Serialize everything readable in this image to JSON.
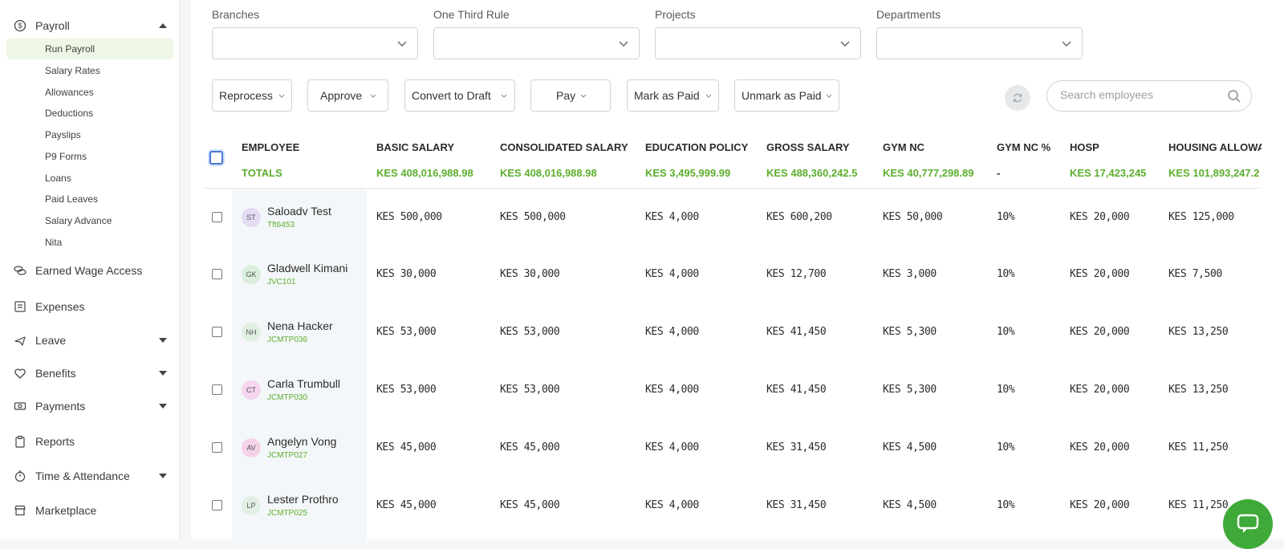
{
  "sidebar": {
    "payroll": {
      "label": "Payroll",
      "icon": "dollar-circle-icon"
    },
    "subitems": [
      "Run Payroll",
      "Salary Rates",
      "Allowances",
      "Deductions",
      "Payslips",
      "P9 Forms",
      "Loans",
      "Paid Leaves",
      "Salary Advance",
      "Nita"
    ],
    "active_subitem": "Run Payroll",
    "items": [
      {
        "label": "Earned Wage Access",
        "icon": "coins-icon"
      },
      {
        "label": "Expenses",
        "icon": "receipt-icon"
      },
      {
        "label": "Leave",
        "icon": "plane-icon"
      },
      {
        "label": "Benefits",
        "icon": "heart-icon"
      },
      {
        "label": "Payments",
        "icon": "banknote-icon"
      },
      {
        "label": "Reports",
        "icon": "clipboard-icon"
      },
      {
        "label": "Time & Attendance",
        "icon": "stopwatch-icon"
      },
      {
        "label": "Marketplace",
        "icon": "store-icon"
      }
    ]
  },
  "filters": [
    {
      "label": "Branches",
      "value": ""
    },
    {
      "label": "One Third Rule",
      "value": ""
    },
    {
      "label": "Projects",
      "value": ""
    },
    {
      "label": "Departments",
      "value": ""
    }
  ],
  "actions": [
    "Reprocess",
    "Approve",
    "Convert to Draft",
    "Pay",
    "Mark as Paid",
    "Unmark as Paid"
  ],
  "search": {
    "placeholder": "Search employees"
  },
  "table": {
    "columns": [
      "EMPLOYEE",
      "BASIC SALARY",
      "CONSOLIDATED SALARY",
      "EDUCATION POLICY",
      "GROSS SALARY",
      "GYM NC",
      "GYM NC %",
      "HOSP",
      "HOUSING ALLOWA"
    ],
    "totals": [
      "TOTALS",
      "KES 408,016,988.98",
      "KES 408,016,988.98",
      "KES 3,495,999.99",
      "KES 488,360,242.5",
      "KES 40,777,298.89",
      "-",
      "KES 17,423,245",
      "KES 101,893,247.2"
    ],
    "rows": [
      {
        "initials": "ST",
        "name": "Saloadv Test",
        "code": "Tft6453",
        "avatar_color": "#e4dcf3",
        "cells": [
          "KES 500,000",
          "KES 500,000",
          "KES 4,000",
          "KES 600,200",
          "KES 50,000",
          "10%",
          "KES 20,000",
          "KES 125,000"
        ]
      },
      {
        "initials": "GK",
        "name": "Gladwell Kimani",
        "code": "JVC101",
        "avatar_color": "#dbeedd",
        "cells": [
          "KES 30,000",
          "KES 30,000",
          "KES 4,000",
          "KES 12,700",
          "KES 3,000",
          "10%",
          "KES 20,000",
          "KES 7,500"
        ]
      },
      {
        "initials": "NH",
        "name": "Nena Hacker",
        "code": "JCMTP036",
        "avatar_color": "#dff0e2",
        "cells": [
          "KES 53,000",
          "KES 53,000",
          "KES 4,000",
          "KES 41,450",
          "KES 5,300",
          "10%",
          "KES 20,000",
          "KES 13,250"
        ]
      },
      {
        "initials": "CT",
        "name": "Carla Trumbull",
        "code": "JCMTP030",
        "avatar_color": "#f7d6ef",
        "cells": [
          "KES 53,000",
          "KES 53,000",
          "KES 4,000",
          "KES 41,450",
          "KES 5,300",
          "10%",
          "KES 20,000",
          "KES 13,250"
        ]
      },
      {
        "initials": "AV",
        "name": "Angelyn Vong",
        "code": "JCMTP027",
        "avatar_color": "#f4d3e8",
        "cells": [
          "KES 45,000",
          "KES 45,000",
          "KES 4,000",
          "KES 31,450",
          "KES 4,500",
          "10%",
          "KES 20,000",
          "KES 11,250"
        ]
      },
      {
        "initials": "LP",
        "name": "Lester Prothro",
        "code": "JCMTP025",
        "avatar_color": "#e2efe3",
        "cells": [
          "KES 45,000",
          "KES 45,000",
          "KES 4,000",
          "KES 31,450",
          "KES 4,500",
          "10%",
          "KES 20,000",
          "KES 11,250"
        ]
      }
    ]
  },
  "colors": {
    "accent": "#5cae2e",
    "active_bg": "#eef7e6",
    "chat": "#3faa3a"
  },
  "chat": {
    "icon": "chat-bubble-icon"
  }
}
